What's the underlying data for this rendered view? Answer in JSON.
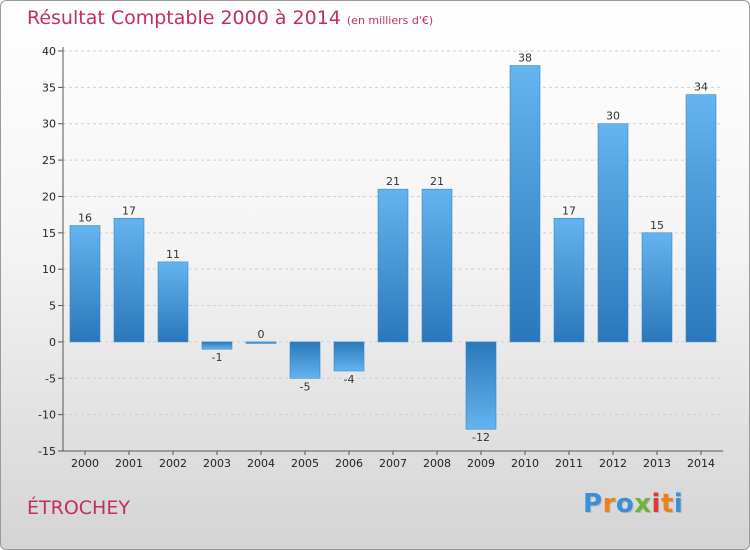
{
  "title": "Résultat Comptable 2000 à 2014",
  "title_unit": "(en milliers d'€)",
  "commune": "ÉTROCHEY",
  "logo": {
    "text": "Proxiti",
    "colors": [
      "#3b8fd6",
      "#e8841f",
      "#3b8fd6",
      "#6bb53c",
      "#d83b3b",
      "#e8841f",
      "#3b8fd6"
    ]
  },
  "colors": {
    "bar_light": "#63b4ef",
    "bar_dark": "#2a78bb",
    "title": "#c0305e"
  },
  "chart_data": {
    "type": "bar",
    "categories": [
      "2000",
      "2001",
      "2002",
      "2003",
      "2004",
      "2005",
      "2006",
      "2007",
      "2008",
      "2009",
      "2010",
      "2011",
      "2012",
      "2013",
      "2014"
    ],
    "values": [
      16,
      17,
      11,
      -1,
      0,
      -5,
      -4,
      21,
      21,
      -12,
      38,
      17,
      30,
      15,
      34
    ],
    "data_labels": [
      "16",
      "17",
      "11",
      "-1",
      "0",
      "-5",
      "-4",
      "21",
      "21",
      "-12",
      "38",
      "17",
      "30",
      "15",
      "34"
    ],
    "ylim": [
      -15,
      40
    ],
    "yticks": [
      -15,
      -10,
      -5,
      0,
      5,
      10,
      15,
      20,
      25,
      30,
      35,
      40
    ],
    "grid": true,
    "xlabel": "",
    "ylabel": ""
  }
}
